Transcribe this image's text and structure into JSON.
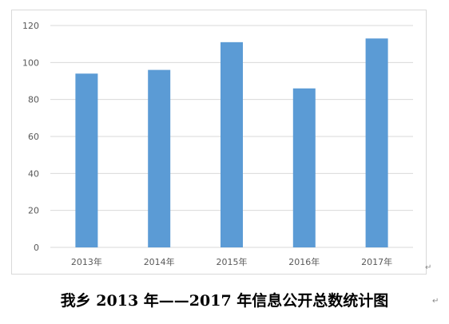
{
  "chart_data": {
    "type": "bar",
    "categories": [
      "2013年",
      "2014年",
      "2015年",
      "2016年",
      "2017年"
    ],
    "series": [
      {
        "values": [
          94,
          96,
          111,
          86,
          113
        ]
      }
    ],
    "ylim": [
      0,
      120
    ],
    "yticks": [
      "0",
      "20",
      "40",
      "60",
      "80",
      "100",
      "120"
    ],
    "grid": true,
    "bar_color": "#5b9bd5"
  },
  "caption": "我乡 2013 年——2017 年信息公开总数统计图"
}
